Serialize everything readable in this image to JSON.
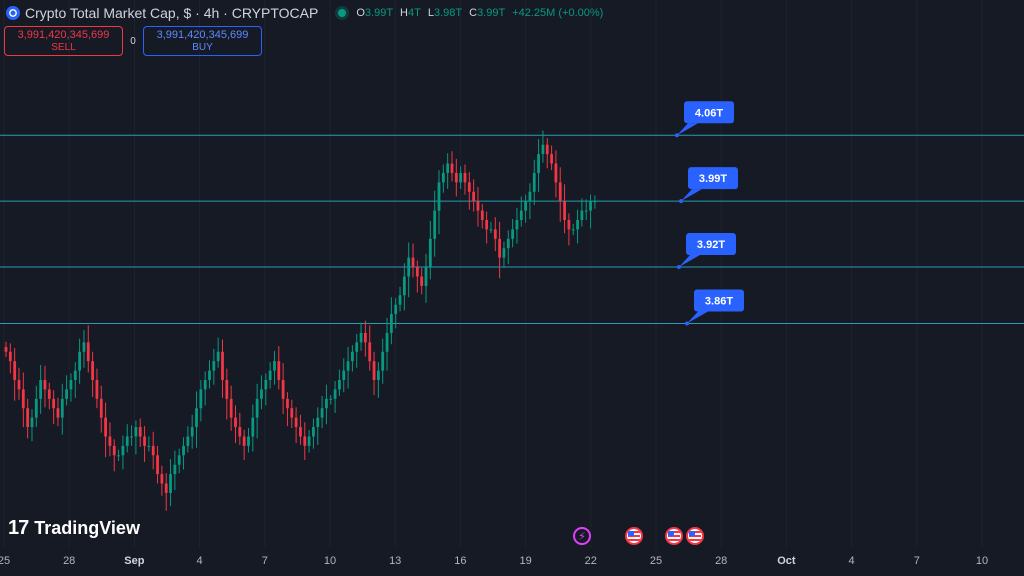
{
  "header": {
    "title": "Crypto Total Market Cap, $ · 4h · CRYPTOCAP",
    "ohlc": [
      {
        "label": "O",
        "value": "3.99T"
      },
      {
        "label": "H",
        "value": "4T"
      },
      {
        "label": "L",
        "value": "3.98T"
      },
      {
        "label": "C",
        "value": "3.99T"
      }
    ],
    "change": "+42.25M (+0.00%)"
  },
  "trade": {
    "sell_price": "3,991,420,345,699",
    "sell_label": "SELL",
    "spread": "0",
    "buy_price": "3,991,420,345,699",
    "buy_label": "BUY"
  },
  "watermark": "TradingView",
  "colors": {
    "background": "#161a25",
    "up": "#089981",
    "down": "#f23645",
    "level_line": "#2a9bb5",
    "callout": "#2962ff"
  },
  "events": [
    "lightning-icon",
    "us-flag-icon",
    "us-flag-icon",
    "us-flag-icon"
  ],
  "chart_data": {
    "type": "candlestick",
    "timeframe": "4h",
    "x_ticks": [
      "25",
      "28",
      "Sep",
      "4",
      "7",
      "10",
      "13",
      "16",
      "19",
      "22",
      "25",
      "28",
      "Oct",
      "4",
      "7",
      "10"
    ],
    "bold_ticks": [
      "Sep",
      "Oct"
    ],
    "ylim": [
      3.63,
      4.14
    ],
    "levels": [
      {
        "label": "4.06T",
        "value": 4.06
      },
      {
        "label": "3.99T",
        "value": 3.99
      },
      {
        "label": "3.92T",
        "value": 3.92
      },
      {
        "label": "3.86T",
        "value": 3.86
      }
    ],
    "closes": [
      3.83,
      3.82,
      3.8,
      3.79,
      3.77,
      3.75,
      3.76,
      3.78,
      3.8,
      3.79,
      3.78,
      3.77,
      3.76,
      3.78,
      3.79,
      3.8,
      3.81,
      3.83,
      3.84,
      3.82,
      3.8,
      3.78,
      3.76,
      3.74,
      3.73,
      3.72,
      3.72,
      3.73,
      3.74,
      3.74,
      3.75,
      3.74,
      3.73,
      3.73,
      3.72,
      3.7,
      3.69,
      3.68,
      3.7,
      3.71,
      3.72,
      3.73,
      3.74,
      3.75,
      3.77,
      3.79,
      3.8,
      3.81,
      3.82,
      3.83,
      3.8,
      3.78,
      3.76,
      3.75,
      3.74,
      3.73,
      3.74,
      3.76,
      3.78,
      3.79,
      3.8,
      3.81,
      3.82,
      3.8,
      3.78,
      3.77,
      3.76,
      3.75,
      3.74,
      3.73,
      3.74,
      3.75,
      3.76,
      3.77,
      3.78,
      3.78,
      3.79,
      3.8,
      3.81,
      3.82,
      3.83,
      3.84,
      3.85,
      3.84,
      3.82,
      3.8,
      3.81,
      3.83,
      3.85,
      3.87,
      3.88,
      3.89,
      3.91,
      3.93,
      3.92,
      3.91,
      3.9,
      3.92,
      3.95,
      3.98,
      4.01,
      4.02,
      4.03,
      4.02,
      4.01,
      4.02,
      4.01,
      4.0,
      3.99,
      3.98,
      3.97,
      3.96,
      3.96,
      3.95,
      3.93,
      3.94,
      3.95,
      3.96,
      3.97,
      3.98,
      3.99,
      4.0,
      4.02,
      4.04,
      4.05,
      4.04,
      4.03,
      4.01,
      3.99,
      3.97,
      3.96,
      3.96,
      3.97,
      3.98,
      3.98,
      3.99,
      3.99
    ]
  }
}
